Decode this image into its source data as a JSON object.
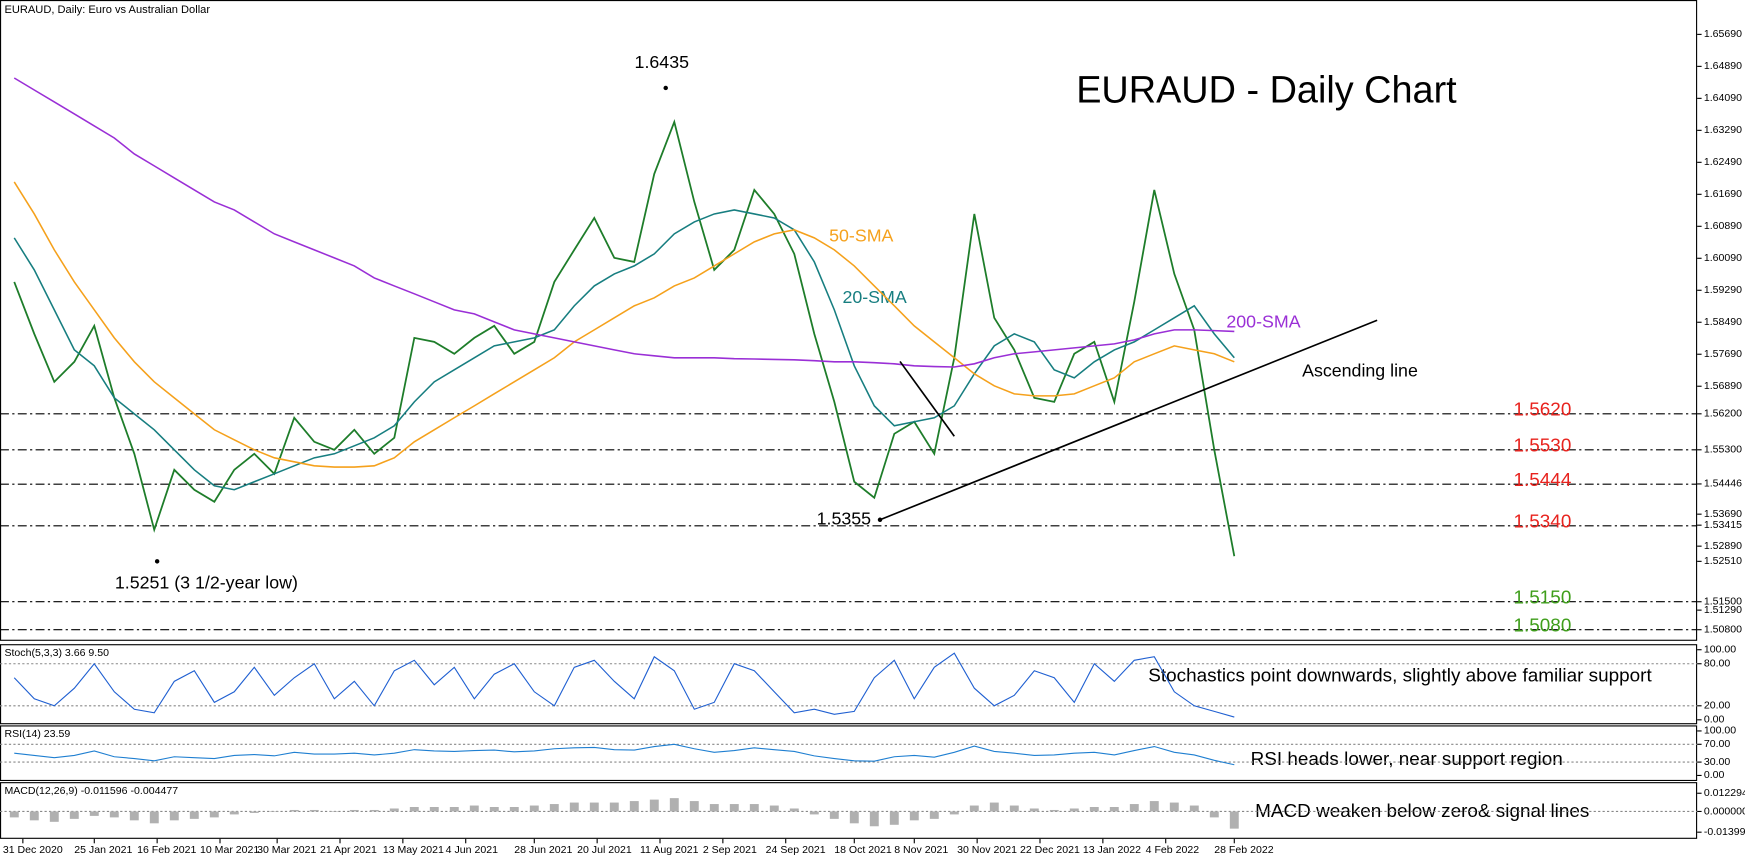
{
  "chart_data": [
    {
      "type": "line",
      "title": "EURAUD - Daily Chart",
      "subtitle": "EURAUD, Daily:  Euro vs Australian Dollar",
      "xlim": [
        "23 Dec 2020",
        "9 Aug 2022"
      ],
      "xticks": [
        "31 Dec 2020",
        "25 Jan 2021",
        "16 Feb 2021",
        "10 Mar 2021",
        "30 Mar 2021",
        "21 Apr 2021",
        "13 May 2021",
        "4 Jun 2021",
        "28 Jun 2021",
        "20 Jul 2021",
        "11 Aug 2021",
        "2 Sep 2021",
        "24 Sep 2021",
        "18 Oct 2021",
        "8 Nov 2021",
        "30 Nov 2021",
        "22 Dec 2021",
        "13 Jan 2022",
        "4 Feb 2022",
        "28 Feb 2022"
      ],
      "ylim": [
        1.5055,
        1.6655
      ],
      "yticks": [
        {
          "value": 1.6569,
          "label": "1.65690"
        },
        {
          "value": 1.6489,
          "label": "1.64890"
        },
        {
          "value": 1.6409,
          "label": "1.64090"
        },
        {
          "value": 1.6329,
          "label": "1.63290"
        },
        {
          "value": 1.6249,
          "label": "1.62490"
        },
        {
          "value": 1.6169,
          "label": "1.61690"
        },
        {
          "value": 1.6089,
          "label": "1.60890"
        },
        {
          "value": 1.6009,
          "label": "1.60090"
        },
        {
          "value": 1.5929,
          "label": "1.59290"
        },
        {
          "value": 1.5849,
          "label": "1.58490"
        },
        {
          "value": 1.5769,
          "label": "1.57690"
        },
        {
          "value": 1.5689,
          "label": "1.56890"
        },
        {
          "value": 1.562,
          "label": "1.56200"
        },
        {
          "value": 1.553,
          "label": "1.55300"
        },
        {
          "value": 1.54446,
          "label": "1.54446"
        },
        {
          "value": 1.5369,
          "label": "1.53690"
        },
        {
          "value": 1.53415,
          "label": "1.53415"
        },
        {
          "value": 1.5289,
          "label": "1.52890"
        },
        {
          "value": 1.5251,
          "label": "1.52510"
        },
        {
          "value": 1.515,
          "label": "1.51500"
        },
        {
          "value": 1.5129,
          "label": "1.51290"
        },
        {
          "value": 1.508,
          "label": "1.50800"
        }
      ],
      "x": [
        "28 Dec 2020",
        "4 Jan 2021",
        "11 Jan 2021",
        "18 Jan 2021",
        "25 Jan 2021",
        "1 Feb 2021",
        "8 Feb 2021",
        "15 Feb 2021",
        "22 Feb 2021",
        "1 Mar 2021",
        "8 Mar 2021",
        "15 Mar 2021",
        "22 Mar 2021",
        "29 Mar 2021",
        "5 Apr 2021",
        "12 Apr 2021",
        "19 Apr 2021",
        "26 Apr 2021",
        "3 May 2021",
        "10 May 2021",
        "17 May 2021",
        "24 May 2021",
        "31 May 2021",
        "7 Jun 2021",
        "14 Jun 2021",
        "21 Jun 2021",
        "28 Jun 2021",
        "5 Jul 2021",
        "12 Jul 2021",
        "19 Jul 2021",
        "26 Jul 2021",
        "2 Aug 2021",
        "9 Aug 2021",
        "16 Aug 2021",
        "23 Aug 2021",
        "30 Aug 2021",
        "6 Sep 2021",
        "13 Sep 2021",
        "20 Sep 2021",
        "27 Sep 2021",
        "4 Oct 2021",
        "11 Oct 2021",
        "18 Oct 2021",
        "25 Oct 2021",
        "1 Nov 2021",
        "8 Nov 2021",
        "15 Nov 2021",
        "22 Nov 2021",
        "29 Nov 2021",
        "6 Dec 2021",
        "13 Dec 2021",
        "20 Dec 2021",
        "27 Dec 2021",
        "3 Jan 2022",
        "10 Jan 2022",
        "17 Jan 2022",
        "24 Jan 2022",
        "31 Jan 2022",
        "7 Feb 2022",
        "14 Feb 2022",
        "21 Feb 2022",
        "28 Feb 2022"
      ],
      "series": [
        {
          "color": "#1e7d2a",
          "values": [
            1.595,
            1.582,
            1.57,
            1.575,
            1.584,
            1.566,
            1.552,
            1.533,
            1.548,
            1.543,
            1.54,
            1.548,
            1.552,
            1.547,
            1.561,
            1.555,
            1.553,
            1.558,
            1.552,
            1.556,
            1.581,
            1.58,
            1.577,
            1.581,
            1.584,
            1.577,
            1.58,
            1.595,
            1.603,
            1.611,
            1.601,
            1.6,
            1.622,
            1.635,
            1.615,
            1.598,
            1.603,
            1.618,
            1.612,
            1.602,
            1.582,
            1.565,
            1.545,
            1.541,
            1.557,
            1.56,
            1.552,
            1.576,
            1.612,
            1.586,
            1.578,
            1.566,
            1.565,
            1.577,
            1.58,
            1.565,
            1.59,
            1.618,
            1.597,
            1.583,
            1.553,
            1.5264
          ]
        },
        {
          "name": "20-SMA",
          "color": "#177e80",
          "values": [
            1.606,
            1.598,
            1.588,
            1.578,
            1.574,
            1.566,
            1.562,
            1.558,
            1.553,
            1.548,
            1.544,
            1.543,
            1.545,
            1.547,
            1.549,
            1.551,
            1.552,
            1.554,
            1.556,
            1.559,
            1.565,
            1.57,
            1.573,
            1.576,
            1.579,
            1.58,
            1.581,
            1.583,
            1.589,
            1.594,
            1.597,
            1.599,
            1.602,
            1.607,
            1.61,
            1.612,
            1.613,
            1.612,
            1.611,
            1.608,
            1.6,
            1.588,
            1.574,
            1.564,
            1.559,
            1.56,
            1.561,
            1.564,
            1.572,
            1.579,
            1.582,
            1.58,
            1.573,
            1.571,
            1.575,
            1.578,
            1.58,
            1.583,
            1.586,
            1.589,
            1.582,
            1.576
          ]
        },
        {
          "name": "50-SMA",
          "color": "#f5a11c",
          "values": [
            1.62,
            1.612,
            1.603,
            1.595,
            1.588,
            1.581,
            1.575,
            1.57,
            1.566,
            1.562,
            1.558,
            1.5555,
            1.553,
            1.551,
            1.55,
            1.549,
            1.5487,
            1.5487,
            1.549,
            1.551,
            1.555,
            1.558,
            1.561,
            1.564,
            1.567,
            1.57,
            1.573,
            1.576,
            1.58,
            1.583,
            1.586,
            1.589,
            1.591,
            1.594,
            1.596,
            1.599,
            1.602,
            1.605,
            1.607,
            1.608,
            1.606,
            1.603,
            1.599,
            1.594,
            1.589,
            1.584,
            1.58,
            1.576,
            1.572,
            1.569,
            1.567,
            1.5665,
            1.5665,
            1.567,
            1.569,
            1.571,
            1.575,
            1.577,
            1.579,
            1.578,
            1.577,
            1.575
          ]
        },
        {
          "name": "200-SMA",
          "color": "#9a2fd6",
          "values": [
            1.646,
            1.643,
            1.64,
            1.637,
            1.634,
            1.631,
            1.627,
            1.624,
            1.621,
            1.618,
            1.615,
            1.613,
            1.61,
            1.607,
            1.605,
            1.603,
            1.601,
            1.599,
            1.596,
            1.594,
            1.592,
            1.59,
            1.588,
            1.587,
            1.585,
            1.583,
            1.582,
            1.581,
            1.58,
            1.579,
            1.578,
            1.577,
            1.5765,
            1.576,
            1.576,
            1.576,
            1.5758,
            1.5757,
            1.5756,
            1.5755,
            1.5753,
            1.575,
            1.575,
            1.5748,
            1.5745,
            1.574,
            1.5738,
            1.5737,
            1.5745,
            1.576,
            1.577,
            1.5775,
            1.578,
            1.5785,
            1.579,
            1.5795,
            1.5805,
            1.582,
            1.583,
            1.583,
            1.5828,
            1.5826
          ]
        }
      ],
      "levels": [
        {
          "value": 1.562,
          "label": "1.5620",
          "color": "#e8231e"
        },
        {
          "value": 1.553,
          "label": "1.5530",
          "color": "#e8231e"
        },
        {
          "value": 1.5444,
          "label": "1.5444",
          "color": "#e8231e"
        },
        {
          "value": 1.534,
          "label": "1.5340",
          "color": "#e8231e"
        },
        {
          "value": 1.515,
          "label": "1.5150",
          "color": "#3f9e1b"
        },
        {
          "value": 1.508,
          "label": "1.5080",
          "color": "#3f9e1b"
        }
      ],
      "points": [
        {
          "label": "1.6435",
          "value": 1.6435,
          "x": "13 Aug 2021"
        },
        {
          "label": "1.5355",
          "value": 1.5355,
          "x": "27 Oct 2021"
        },
        {
          "label": "1.5251 (3 1/2-year low)",
          "value": 1.5251,
          "x": "16 Feb 2021"
        }
      ],
      "trendlines": [
        {
          "label": "Ascending line",
          "x": [
            "27 Oct 2021",
            "19 Apr 2022"
          ],
          "values": [
            1.5355,
            1.5854
          ]
        },
        {
          "x": [
            "3 Nov 2021",
            "22 Nov 2021"
          ],
          "values": [
            1.5751,
            1.5564
          ]
        }
      ]
    },
    {
      "type": "line",
      "title": "Stoch(5,3,3) 3.66 9.50",
      "annotation": "Stochastics point downwards, slightly above familiar support",
      "ylim": [
        0,
        100
      ],
      "yticks": [
        {
          "value": 100,
          "label": "100.00"
        },
        {
          "value": 80,
          "label": "80.00"
        },
        {
          "value": 20,
          "label": "20.00"
        },
        {
          "value": 0,
          "label": "0.00"
        }
      ],
      "color": "#1f5fd1",
      "values": [
        60,
        30,
        20,
        45,
        80,
        40,
        15,
        10,
        55,
        70,
        25,
        40,
        75,
        35,
        60,
        80,
        30,
        55,
        20,
        70,
        85,
        50,
        75,
        30,
        65,
        80,
        40,
        20,
        75,
        85,
        55,
        30,
        90,
        70,
        15,
        25,
        80,
        70,
        40,
        10,
        15,
        8,
        12,
        60,
        85,
        30,
        75,
        95,
        45,
        20,
        35,
        70,
        60,
        25,
        80,
        55,
        85,
        90,
        40,
        20,
        12,
        4
      ]
    },
    {
      "type": "line",
      "title": "RSI(14) 23.59",
      "annotation": "RSI heads lower, near support region",
      "ylim": [
        0,
        100
      ],
      "yticks": [
        {
          "value": 100,
          "label": "100.00"
        },
        {
          "value": 70,
          "label": "70.00"
        },
        {
          "value": 30,
          "label": "30.00"
        },
        {
          "value": 0,
          "label": "0.00"
        }
      ],
      "color": "#1f7fd1",
      "values": [
        50,
        45,
        40,
        45,
        55,
        42,
        38,
        33,
        42,
        40,
        38,
        45,
        47,
        44,
        52,
        48,
        48,
        50,
        46,
        50,
        58,
        55,
        54,
        56,
        57,
        53,
        55,
        60,
        62,
        63,
        58,
        57,
        65,
        70,
        60,
        52,
        56,
        62,
        58,
        54,
        44,
        38,
        33,
        32,
        42,
        45,
        41,
        52,
        66,
        54,
        50,
        45,
        46,
        50,
        52,
        46,
        56,
        65,
        52,
        46,
        34,
        24
      ]
    },
    {
      "type": "bar",
      "title": "MACD(12,26,9) -0.011596 -0.004477",
      "annotation": "MACD weaken below zero& signal lines",
      "ylim": [
        -0.013995,
        0.012294
      ],
      "yticks": [
        {
          "value": 0.012294,
          "label": "0.012294"
        },
        {
          "value": 0,
          "label": "0.000000"
        },
        {
          "value": -0.013995,
          "label": "-0.013995"
        }
      ],
      "color": "#b0b0b0",
      "values": [
        -0.004,
        -0.006,
        -0.007,
        -0.005,
        -0.003,
        -0.004,
        -0.006,
        -0.008,
        -0.006,
        -0.005,
        -0.004,
        -0.002,
        -0.001,
        0,
        0.001,
        0.001,
        0,
        0.001,
        0.001,
        0.002,
        0.003,
        0.003,
        0.003,
        0.004,
        0.003,
        0.003,
        0.004,
        0.005,
        0.006,
        0.006,
        0.006,
        0.007,
        0.008,
        0.009,
        0.007,
        0.005,
        0.005,
        0.005,
        0.004,
        0.002,
        -0.002,
        -0.005,
        -0.008,
        -0.01,
        -0.009,
        -0.006,
        -0.005,
        -0.002,
        0.004,
        0.006,
        0.004,
        0.002,
        0.001,
        0.002,
        0.003,
        0.003,
        0.005,
        0.007,
        0.006,
        0.004,
        -0.004,
        -0.0116
      ]
    }
  ]
}
